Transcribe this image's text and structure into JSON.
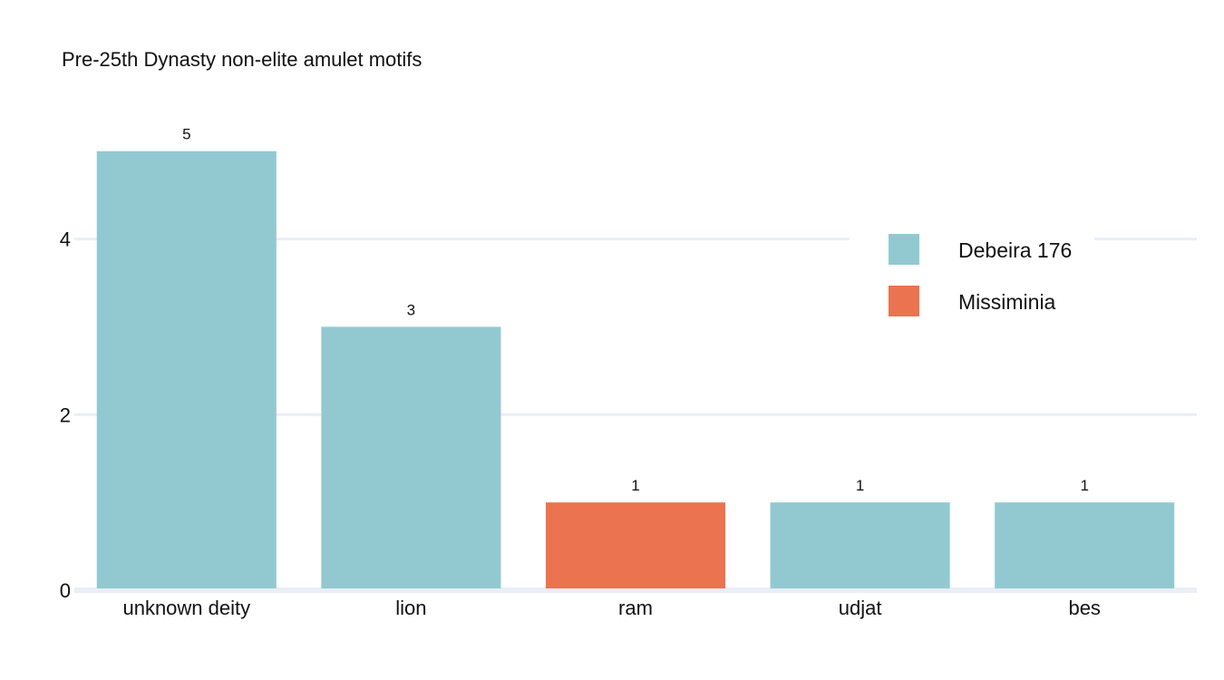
{
  "chart_data": {
    "type": "bar",
    "title": "Pre-25th Dynasty non-elite amulet motifs",
    "xlabel": "",
    "ylabel": "",
    "categories": [
      "unknown deity",
      "lion",
      "ram",
      "udjat",
      "bes"
    ],
    "bars": [
      {
        "category": "unknown deity",
        "value": 5,
        "series": "Debeira 176"
      },
      {
        "category": "lion",
        "value": 3,
        "series": "Debeira 176"
      },
      {
        "category": "ram",
        "value": 1,
        "series": "Missiminia"
      },
      {
        "category": "udjat",
        "value": 1,
        "series": "Debeira 176"
      },
      {
        "category": "bes",
        "value": 1,
        "series": "Debeira 176"
      }
    ],
    "series": [
      {
        "name": "Debeira 176",
        "color": "#92c9d1"
      },
      {
        "name": "Missiminia",
        "color": "#eb734f"
      }
    ],
    "ylim": [
      0,
      5.4
    ],
    "yticks": [
      0,
      2,
      4
    ],
    "grid": true,
    "legend_position": "right"
  }
}
